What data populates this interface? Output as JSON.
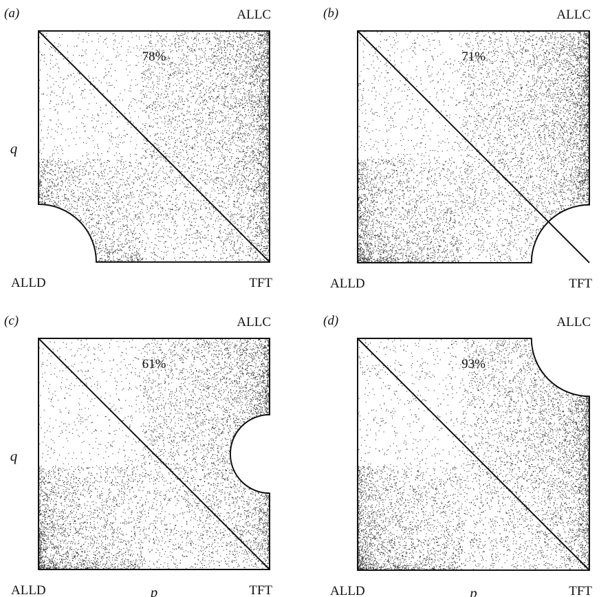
{
  "chart_data": [
    {
      "type": "scatter",
      "panel_label": "(a)",
      "corner_labels": {
        "top_right": "ALLC",
        "bottom_left": "ALLD",
        "bottom_right": "TFT"
      },
      "ylabel": "q",
      "xlabel": "",
      "annotation": "78%",
      "xlim": [
        0,
        1
      ],
      "ylim": [
        0,
        1
      ],
      "cutout": {
        "corner": "bottom-left",
        "radius": 0.25
      },
      "points": 9000
    },
    {
      "type": "scatter",
      "panel_label": "(b)",
      "corner_labels": {
        "top_right": "ALLC",
        "bottom_left": "ALLD",
        "bottom_right": "TFT"
      },
      "ylabel": "",
      "xlabel": "",
      "annotation": "71%",
      "xlim": [
        0,
        1
      ],
      "ylim": [
        0,
        1
      ],
      "cutout": {
        "corner": "bottom-right",
        "radius": 0.25
      },
      "points": 9000
    },
    {
      "type": "scatter",
      "panel_label": "(c)",
      "corner_labels": {
        "top_right": "ALLC",
        "bottom_left": "ALLD",
        "bottom_right": "TFT"
      },
      "ylabel": "q",
      "xlabel": "p",
      "annotation": "61%",
      "xlim": [
        0,
        1
      ],
      "ylim": [
        0,
        1
      ],
      "cutout": {
        "corner": "right-middle",
        "radius": 0.17
      },
      "points": 9000
    },
    {
      "type": "scatter",
      "panel_label": "(d)",
      "corner_labels": {
        "top_right": "ALLC",
        "bottom_left": "ALLD",
        "bottom_right": "TFT"
      },
      "ylabel": "",
      "xlabel": "p",
      "annotation": "93%",
      "xlim": [
        0,
        1
      ],
      "ylim": [
        0,
        1
      ],
      "cutout": {
        "corner": "top-right",
        "radius": 0.25
      },
      "points": 9000
    }
  ]
}
